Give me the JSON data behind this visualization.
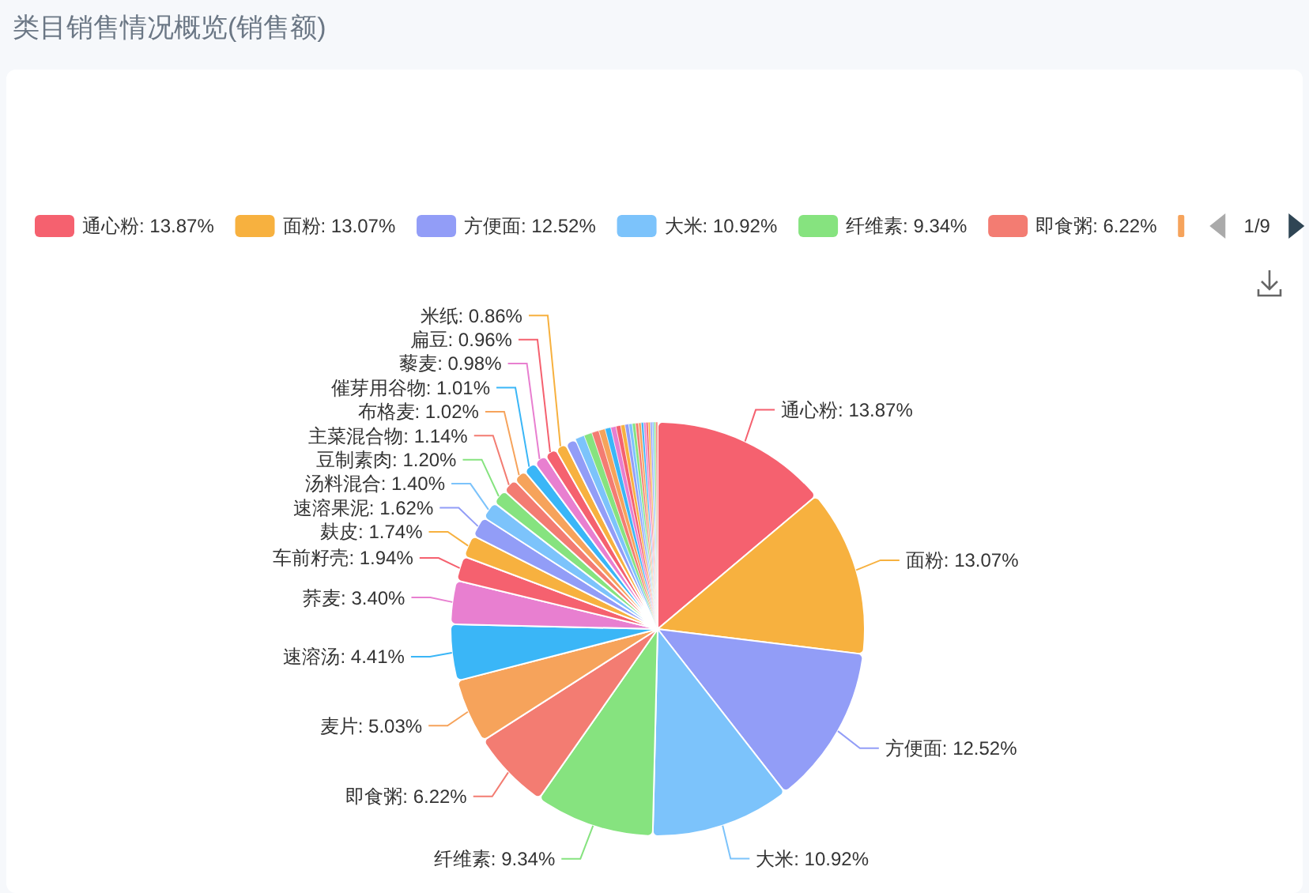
{
  "chart_data": {
    "type": "pie",
    "title": "类目销售情况概览(销售额)",
    "categories": [
      "通心粉",
      "面粉",
      "方便面",
      "大米",
      "纤维素",
      "即食粥",
      "麦片",
      "速溶汤",
      "荞麦",
      "车前籽壳",
      "麸皮",
      "速溶果泥",
      "汤料混合",
      "豆制素肉",
      "主菜混合物",
      "布格麦",
      "催芽用谷物",
      "藜麦",
      "扁豆",
      "米纸",
      null,
      null,
      null,
      null,
      null,
      null,
      null,
      null,
      null,
      null,
      null,
      null,
      null,
      null,
      null,
      null,
      null,
      null,
      null,
      null,
      null,
      null
    ],
    "values": [
      13.87,
      13.07,
      12.52,
      10.92,
      9.34,
      6.22,
      5.03,
      4.41,
      3.4,
      1.94,
      1.74,
      1.62,
      1.4,
      1.2,
      1.14,
      1.02,
      1.01,
      0.98,
      0.96,
      0.86,
      0.85,
      0.72,
      0.63,
      0.56,
      0.5,
      0.45,
      0.41,
      0.37,
      0.33,
      0.3,
      0.27,
      0.25,
      0.23,
      0.21,
      0.19,
      0.18,
      0.17,
      0.16,
      0.15,
      0.14,
      0.14,
      0.14
    ],
    "value_labels": [
      "13.87%",
      "13.07%",
      "12.52%",
      "10.92%",
      "9.34%",
      "6.22%",
      "5.03%",
      "4.41%",
      "3.40%",
      "1.94%",
      "1.74%",
      "1.62%",
      "1.40%",
      "1.20%",
      "1.14%",
      "1.02%",
      "1.01%",
      "0.98%",
      "0.96%",
      "0.86%",
      null,
      null,
      null,
      null,
      null,
      null,
      null,
      null,
      null,
      null,
      null,
      null,
      null,
      null,
      null,
      null,
      null,
      null,
      null,
      null,
      null,
      null
    ],
    "colors": [
      "#f5616f",
      "#f7b13f",
      "#929df7",
      "#7cc3fb",
      "#86e37f",
      "#f37c72",
      "#f6a35b",
      "#3ab6f7",
      "#e87fd0",
      "#f5616f",
      "#f7b13f",
      "#929df7",
      "#7cc3fb",
      "#86e37f",
      "#f37c72",
      "#f6a35b",
      "#3ab6f7",
      "#e87fd0",
      "#f5616f",
      "#f7b13f",
      "#929df7",
      "#7cc3fb",
      "#86e37f",
      "#f37c72",
      "#f6a35b",
      "#3ab6f7",
      "#e87fd0",
      "#f5616f",
      "#f7b13f",
      "#929df7",
      "#7cc3fb",
      "#86e37f",
      "#f37c72",
      "#f6a35b",
      "#3ab6f7",
      "#e87fd0",
      "#f5616f",
      "#f7b13f",
      "#929df7",
      "#7cc3fb",
      "#86e37f",
      "#f37c72"
    ],
    "legend": "top",
    "annotations": [
      "1/9"
    ]
  }
}
